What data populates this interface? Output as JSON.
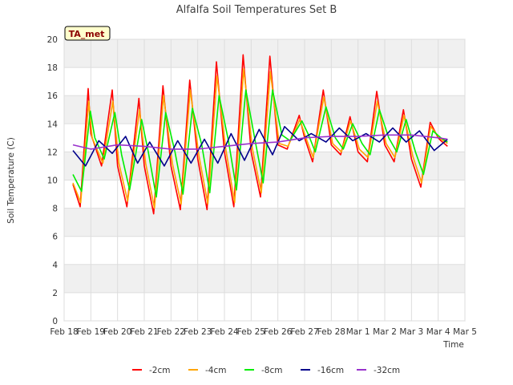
{
  "chart_data": {
    "type": "line",
    "title": "Alfalfa Soil Temperatures Set B",
    "xlabel": "Time",
    "ylabel": "Soil Temperature (C)",
    "badge": "TA_met",
    "ylim": [
      0,
      20
    ],
    "yticks": [
      0,
      2,
      4,
      6,
      8,
      10,
      12,
      14,
      16,
      18,
      20
    ],
    "xlim": [
      0,
      15
    ],
    "xticks": [
      {
        "pos": 0,
        "label": "Feb 18"
      },
      {
        "pos": 1,
        "label": "Feb 19"
      },
      {
        "pos": 2,
        "label": "Feb 20"
      },
      {
        "pos": 3,
        "label": "Feb 21"
      },
      {
        "pos": 4,
        "label": "Feb 22"
      },
      {
        "pos": 5,
        "label": "Feb 23"
      },
      {
        "pos": 6,
        "label": "Feb 24"
      },
      {
        "pos": 7,
        "label": "Feb 25"
      },
      {
        "pos": 8,
        "label": "Feb 26"
      },
      {
        "pos": 9,
        "label": "Feb 27"
      },
      {
        "pos": 10,
        "label": "Feb 28"
      },
      {
        "pos": 11,
        "label": "Mar 1"
      },
      {
        "pos": 12,
        "label": "Mar 2"
      },
      {
        "pos": 13,
        "label": "Mar 3"
      },
      {
        "pos": 14,
        "label": "Mar 4"
      },
      {
        "pos": 15,
        "label": "Mar 5"
      }
    ],
    "grid": true,
    "legend_position": "bottom",
    "series": [
      {
        "name": "-2cm",
        "color": "#ff0000",
        "x": [
          0.33,
          0.6,
          0.9,
          1.0,
          1.4,
          1.8,
          2.0,
          2.35,
          2.8,
          3.0,
          3.35,
          3.7,
          4.0,
          4.35,
          4.7,
          5.0,
          5.35,
          5.7,
          6.0,
          6.35,
          6.7,
          7.0,
          7.35,
          7.7,
          8.0,
          8.35,
          8.8,
          9.0,
          9.3,
          9.7,
          10.0,
          10.35,
          10.7,
          11.0,
          11.35,
          11.7,
          12.0,
          12.35,
          12.7,
          13.0,
          13.35,
          13.7,
          14.0,
          14.1,
          14.35
        ],
        "y": [
          9.7,
          8.1,
          16.5,
          13.3,
          11.0,
          16.4,
          11.0,
          8.1,
          15.8,
          11.0,
          7.6,
          16.7,
          11.0,
          7.9,
          17.1,
          11.5,
          7.9,
          18.4,
          12.0,
          8.1,
          18.9,
          12.0,
          8.8,
          18.8,
          12.5,
          12.2,
          14.6,
          13.0,
          11.3,
          16.4,
          12.5,
          11.8,
          14.5,
          12.0,
          11.3,
          16.3,
          12.5,
          11.3,
          15.0,
          11.5,
          9.5,
          14.1,
          13.0,
          12.8,
          12.4
        ]
      },
      {
        "name": "-4cm",
        "color": "#ffa500",
        "x": [
          0.33,
          0.62,
          0.92,
          1.05,
          1.45,
          1.82,
          2.05,
          2.38,
          2.82,
          3.05,
          3.38,
          3.72,
          4.05,
          4.38,
          4.72,
          5.05,
          5.38,
          5.72,
          6.05,
          6.38,
          6.72,
          7.05,
          7.38,
          7.72,
          8.05,
          8.38,
          8.82,
          9.05,
          9.32,
          9.72,
          10.05,
          10.38,
          10.72,
          11.05,
          11.38,
          11.72,
          12.05,
          12.38,
          12.72,
          13.05,
          13.38,
          13.72,
          14.05,
          14.35
        ],
        "y": [
          9.8,
          8.4,
          15.6,
          13.0,
          11.2,
          15.6,
          11.2,
          8.5,
          15.0,
          11.2,
          8.0,
          16.0,
          11.2,
          8.3,
          16.4,
          11.7,
          8.3,
          17.4,
          12.2,
          8.4,
          17.9,
          12.2,
          9.1,
          17.7,
          12.6,
          12.4,
          14.3,
          13.0,
          11.6,
          15.9,
          12.6,
          12.0,
          14.2,
          12.2,
          11.6,
          15.6,
          12.6,
          11.6,
          14.6,
          11.7,
          9.8,
          13.8,
          13.0,
          12.6
        ]
      },
      {
        "name": "-8cm",
        "color": "#00ee00",
        "x": [
          0.33,
          0.65,
          0.98,
          1.15,
          1.5,
          1.9,
          2.15,
          2.45,
          2.9,
          3.15,
          3.45,
          3.8,
          4.15,
          4.45,
          4.8,
          5.15,
          5.45,
          5.8,
          6.15,
          6.45,
          6.8,
          7.15,
          7.45,
          7.8,
          8.15,
          8.45,
          8.9,
          9.15,
          9.4,
          9.8,
          10.15,
          10.45,
          10.8,
          11.15,
          11.45,
          11.8,
          12.15,
          12.45,
          12.8,
          13.15,
          13.45,
          13.8,
          14.1,
          14.35
        ],
        "y": [
          10.4,
          9.2,
          14.9,
          13.0,
          11.5,
          14.8,
          11.8,
          9.3,
          14.3,
          12.0,
          8.8,
          14.8,
          12.0,
          9.0,
          15.1,
          12.5,
          9.1,
          16.0,
          12.8,
          9.3,
          16.4,
          12.8,
          9.8,
          16.4,
          13.2,
          12.8,
          14.2,
          13.2,
          12.0,
          15.2,
          13.0,
          12.2,
          14.0,
          12.6,
          11.8,
          15.0,
          13.0,
          12.0,
          14.3,
          12.0,
          10.4,
          13.5,
          13.0,
          12.7
        ]
      },
      {
        "name": "-16cm",
        "color": "#00008b",
        "x": [
          0.33,
          0.8,
          1.3,
          1.8,
          2.3,
          2.75,
          3.2,
          3.75,
          4.25,
          4.75,
          5.25,
          5.75,
          6.25,
          6.75,
          7.3,
          7.8,
          8.25,
          8.8,
          9.25,
          9.8,
          10.3,
          10.8,
          11.3,
          11.8,
          12.3,
          12.8,
          13.3,
          13.85,
          14.35
        ],
        "y": [
          12.1,
          11.0,
          12.8,
          11.9,
          13.1,
          11.2,
          12.7,
          11.0,
          12.8,
          11.2,
          12.9,
          11.2,
          13.3,
          11.4,
          13.6,
          11.8,
          13.8,
          12.8,
          13.3,
          12.7,
          13.7,
          12.8,
          13.3,
          12.7,
          13.7,
          12.7,
          13.5,
          12.1,
          12.9
        ]
      },
      {
        "name": "-32cm",
        "color": "#9932cc",
        "x": [
          0.33,
          1.0,
          2.0,
          3.0,
          4.0,
          5.0,
          6.0,
          7.0,
          8.0,
          9.0,
          10.0,
          11.0,
          12.0,
          13.0,
          14.0,
          14.35
        ],
        "y": [
          12.5,
          12.2,
          12.5,
          12.4,
          12.2,
          12.2,
          12.4,
          12.6,
          12.7,
          13.0,
          13.1,
          13.1,
          13.2,
          13.2,
          13.0,
          12.9
        ]
      }
    ]
  }
}
